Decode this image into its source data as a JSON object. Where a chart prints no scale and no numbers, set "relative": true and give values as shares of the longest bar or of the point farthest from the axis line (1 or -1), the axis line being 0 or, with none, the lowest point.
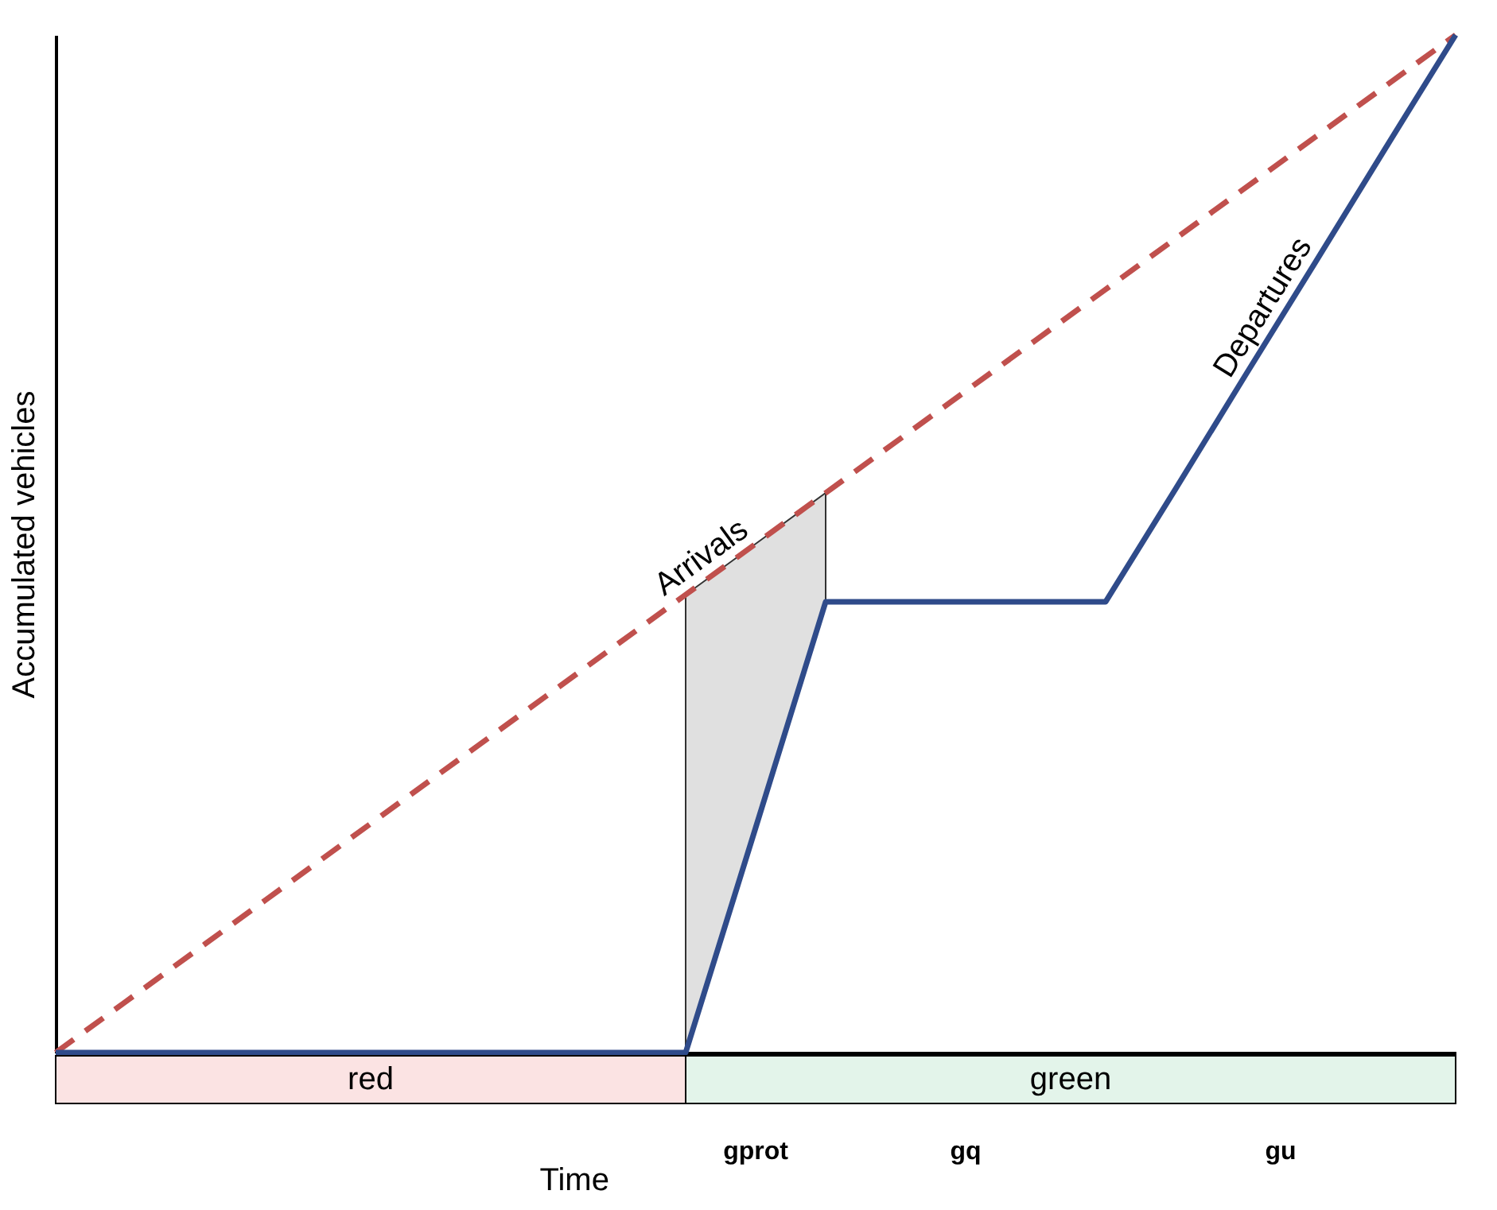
{
  "chart_data": {
    "type": "line",
    "relative": true,
    "xlabel": "Time",
    "ylabel": "Accumulated vehicles",
    "categories": [
      null,
      null,
      null,
      null,
      null,
      null,
      null,
      null,
      null,
      null,
      null,
      null,
      null,
      null,
      null,
      null,
      null,
      null,
      null,
      null,
      null
    ],
    "series": [
      {
        "name": "Arrivals",
        "color": "#c0504d",
        "line_style": "dashed",
        "values": [
          0,
          0.05,
          0.1,
          0.15,
          0.2,
          0.25,
          0.3,
          0.35,
          0.4,
          0.45,
          0.5,
          0.55,
          0.6,
          0.65,
          0.7,
          0.75,
          0.8,
          0.85,
          0.9,
          0.95,
          1
        ],
        "lower": [
          null,
          null,
          null,
          null,
          null,
          null,
          null,
          null,
          null,
          0,
          0.221,
          0.443,
          null,
          null,
          null,
          null,
          null,
          null,
          null,
          null,
          null
        ],
        "upper": [
          null,
          null,
          null,
          null,
          null,
          null,
          null,
          null,
          null,
          0.45,
          0.5,
          0.55,
          null,
          null,
          null,
          null,
          null,
          null,
          null,
          null,
          null
        ]
      },
      {
        "name": "Departures",
        "color": "#2f4b8a",
        "line_style": "solid",
        "values": [
          0,
          0,
          0,
          0,
          0,
          0,
          0,
          0,
          0,
          0,
          0.221,
          0.443,
          0.443,
          0.443,
          0.443,
          0.443,
          0.554,
          0.666,
          0.777,
          0.889,
          1
        ]
      }
    ],
    "annotations": [
      "red",
      "green",
      "gprot",
      "gq",
      "gu"
    ]
  }
}
